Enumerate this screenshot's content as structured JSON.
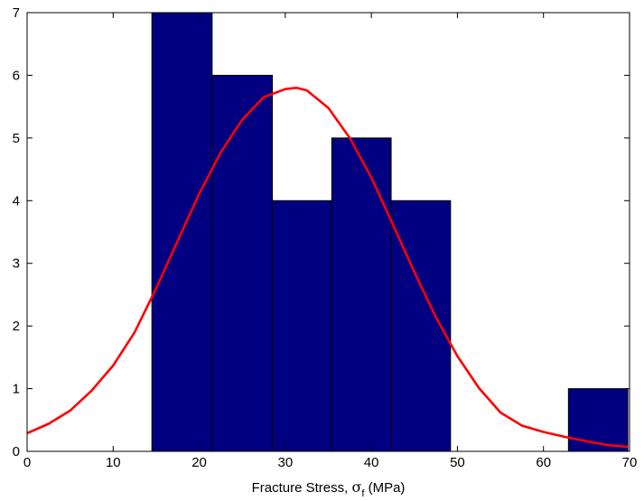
{
  "chart_data": {
    "type": "bar",
    "subtype": "histogram with fitted normal curve",
    "title": "",
    "xlabel": {
      "prefix": "Fracture Stress, ",
      "symbol": "σ",
      "subscript": "f",
      "suffix": " (MPa)"
    },
    "ylabel": "",
    "xlim": [
      0,
      70
    ],
    "ylim": [
      0,
      7
    ],
    "xticks": [
      "0",
      "10",
      "20",
      "30",
      "40",
      "50",
      "60",
      "70"
    ],
    "yticks": [
      "0",
      "1",
      "2",
      "3",
      "4",
      "5",
      "6",
      "7"
    ],
    "grid": false,
    "legend": "none",
    "bins": [
      {
        "x0": 0.0,
        "x1": 7.0,
        "count": 0
      },
      {
        "x0": 7.0,
        "x1": 14.5,
        "count": 0
      },
      {
        "x0": 14.5,
        "x1": 21.5,
        "count": 7
      },
      {
        "x0": 21.5,
        "x1": 28.5,
        "count": 6
      },
      {
        "x0": 28.5,
        "x1": 35.4,
        "count": 4
      },
      {
        "x0": 35.4,
        "x1": 42.3,
        "count": 5
      },
      {
        "x0": 42.3,
        "x1": 49.2,
        "count": 4
      },
      {
        "x0": 49.2,
        "x1": 56.1,
        "count": 0
      },
      {
        "x0": 56.1,
        "x1": 62.9,
        "count": 0
      },
      {
        "x0": 62.9,
        "x1": 69.8,
        "count": 1
      }
    ],
    "curve": {
      "type": "normal-fit",
      "x": [
        0,
        2.5,
        5,
        7.5,
        10,
        12.5,
        15,
        17.5,
        20,
        22.5,
        25,
        27.5,
        30,
        31.3,
        32.5,
        35,
        37.5,
        40,
        42.5,
        45,
        47.5,
        50,
        52.5,
        55,
        57.5,
        60,
        62.5,
        65,
        67.5,
        69.8
      ],
      "y": [
        0.29,
        0.44,
        0.65,
        0.97,
        1.37,
        1.9,
        2.6,
        3.36,
        4.11,
        4.77,
        5.29,
        5.65,
        5.78,
        5.8,
        5.76,
        5.48,
        5.0,
        4.37,
        3.62,
        2.86,
        2.14,
        1.52,
        1.01,
        0.62,
        0.41,
        0.31,
        0.23,
        0.16,
        0.1,
        0.07
      ]
    },
    "colors": {
      "bar_fill": "#000080",
      "bar_edge": "#000000",
      "curve": "#ff0000",
      "axes": "#000000",
      "background": "#ffffff"
    }
  }
}
